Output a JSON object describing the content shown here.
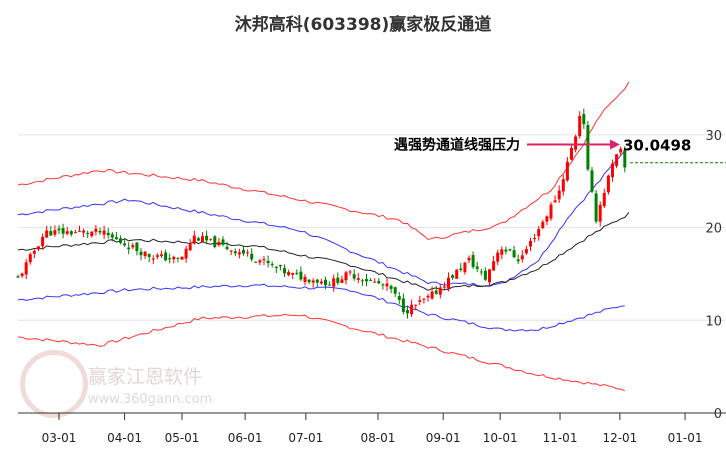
{
  "title": "沐邦高科(603398)赢家极反通道",
  "watermark": {
    "name": "赢家江恩软件",
    "url": "www.360gann.com",
    "seal": "江赢恩家"
  },
  "annotation": {
    "text": "遇强势通道线强压力",
    "value": "30.0498"
  },
  "colors": {
    "up": "#ff0000",
    "down": "#008000",
    "upper": "#ff3333",
    "mid_band": "#3333ff",
    "center": "#222222",
    "arrow": "#e0206a"
  },
  "chart_data": {
    "type": "candlestick",
    "title": "沐邦高科(603398)赢家极反通道",
    "ylim": [
      0,
      45
    ],
    "y_ticks": [
      {
        "v": 0,
        "label": "0"
      },
      {
        "v": 10,
        "label": "10"
      },
      {
        "v": 20,
        "label": "20"
      },
      {
        "v": 30,
        "label": "30"
      }
    ],
    "x_ticks": [
      {
        "i": 10,
        "label": "03-01"
      },
      {
        "i": 26,
        "label": "04-01"
      },
      {
        "i": 40,
        "label": "05-01"
      },
      {
        "i": 55.4,
        "label": "06-01"
      },
      {
        "i": 70.2,
        "label": "07-01"
      },
      {
        "i": 87.8,
        "label": "08-01"
      },
      {
        "i": 103.7,
        "label": "09-01"
      },
      {
        "i": 117.6,
        "label": "10-01"
      },
      {
        "i": 132.2,
        "label": "11-01"
      },
      {
        "i": 146.8,
        "label": "12-01"
      },
      {
        "i": 162.7,
        "label": "01-01"
      }
    ],
    "price_keys": [
      [
        0,
        14.5
      ],
      [
        6.6,
        19.5
      ],
      [
        20,
        19.5
      ],
      [
        32,
        17
      ],
      [
        39.5,
        16.5
      ],
      [
        43,
        19
      ],
      [
        56.6,
        17
      ],
      [
        66,
        15
      ],
      [
        76,
        14
      ],
      [
        81,
        15
      ],
      [
        90.7,
        13.5
      ],
      [
        94.4,
        11
      ],
      [
        100.5,
        12.5
      ],
      [
        110,
        16.5
      ],
      [
        114,
        14.5
      ],
      [
        117.6,
        18
      ],
      [
        122.4,
        16.5
      ],
      [
        128.5,
        21
      ],
      [
        132,
        24
      ],
      [
        136,
        30
      ],
      [
        137.6,
        33.5
      ],
      [
        139,
        26
      ],
      [
        141,
        21
      ],
      [
        144.4,
        26
      ],
      [
        146.8,
        28.5
      ],
      [
        148.8,
        25
      ]
    ],
    "upper_red": [
      [
        0,
        24.6
      ],
      [
        20,
        26.2
      ],
      [
        44.4,
        25.1
      ],
      [
        68.8,
        23
      ],
      [
        93.2,
        20.8
      ],
      [
        100.5,
        18.7
      ],
      [
        117.6,
        20.3
      ],
      [
        130,
        24.1
      ],
      [
        137,
        28.4
      ],
      [
        142,
        32.1
      ],
      [
        149,
        35.6
      ]
    ],
    "upper_blue": [
      [
        0,
        21.4
      ],
      [
        27.3,
        23
      ],
      [
        68.8,
        19.7
      ],
      [
        100.5,
        14
      ],
      [
        117.6,
        13.8
      ],
      [
        127,
        16.5
      ],
      [
        134.6,
        21.4
      ],
      [
        142,
        25.1
      ],
      [
        148,
        28.4
      ]
    ],
    "center": [
      [
        0,
        17.6
      ],
      [
        27.3,
        18.7
      ],
      [
        56.6,
        18.1
      ],
      [
        81,
        16
      ],
      [
        100.5,
        13.3
      ],
      [
        117.6,
        14
      ],
      [
        127,
        15.6
      ],
      [
        139,
        19
      ],
      [
        149,
        21.5
      ]
    ],
    "lower_blue": [
      [
        0,
        12.2
      ],
      [
        27.3,
        13.3
      ],
      [
        56.6,
        13.8
      ],
      [
        81,
        13.3
      ],
      [
        100.5,
        10.6
      ],
      [
        117.6,
        9
      ],
      [
        127,
        9
      ],
      [
        139.5,
        10.6
      ],
      [
        148,
        11.7
      ]
    ],
    "lower_red": [
      [
        0,
        8.2
      ],
      [
        20,
        7.3
      ],
      [
        44.4,
        10.2
      ],
      [
        68.8,
        10.6
      ],
      [
        93.2,
        7.9
      ],
      [
        112.7,
        5.7
      ],
      [
        127,
        4.1
      ],
      [
        142,
        3
      ],
      [
        148.8,
        2.5
      ]
    ],
    "resistance": 30.0498,
    "last_close_level": 27
  }
}
